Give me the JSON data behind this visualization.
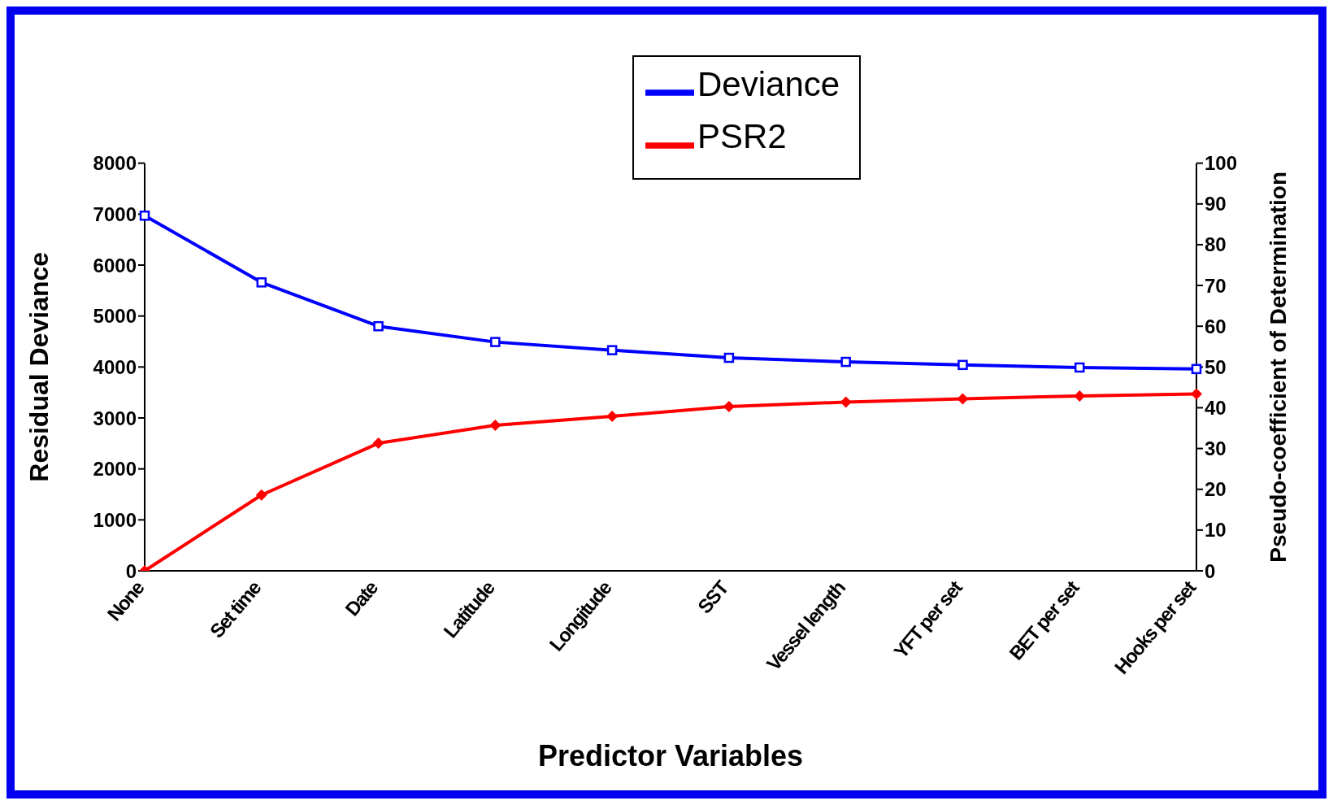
{
  "chart_data": {
    "type": "line",
    "xlabel": "Predictor Variables",
    "ylabel": "Residual Deviance",
    "y2label": "Pseudo-coefficient of Determination",
    "categories": [
      "None",
      "Set time",
      "Date",
      "Latitude",
      "Longitude",
      "SST",
      "Vessel length",
      "YFT per set",
      "BET per set",
      "Hooks per set"
    ],
    "series": [
      {
        "name": "Deviance",
        "color": "#0000ff",
        "marker": "square",
        "values": [
          6970,
          5660,
          4800,
          4490,
          4330,
          4180,
          4100,
          4040,
          3990,
          3960
        ]
      },
      {
        "name": "PSR2",
        "color": "#ff0000",
        "marker": "diamond",
        "axis": "y2",
        "values": [
          0,
          18.6,
          31.3,
          35.7,
          37.9,
          40.3,
          41.4,
          42.2,
          42.9,
          43.4
        ]
      }
    ],
    "ylim": [
      0,
      8000
    ],
    "yticks": [
      0,
      1000,
      2000,
      3000,
      4000,
      5000,
      6000,
      7000,
      8000
    ],
    "y2lim": [
      0,
      100
    ],
    "y2ticks": [
      0,
      10,
      20,
      30,
      40,
      50,
      60,
      70,
      80,
      90,
      100
    ],
    "grid": false,
    "legend": "top",
    "line_style": "solid"
  }
}
